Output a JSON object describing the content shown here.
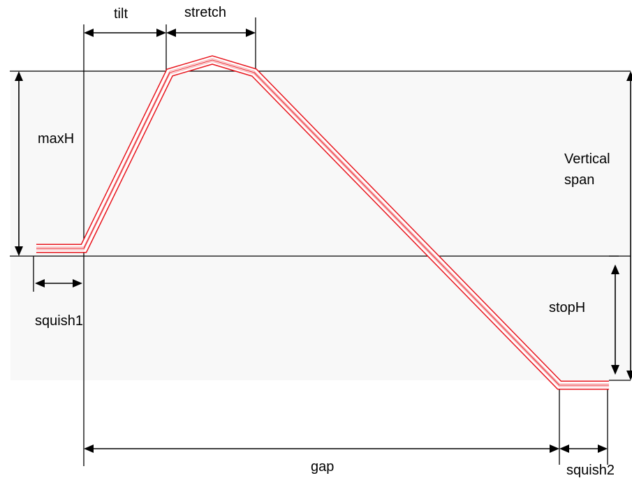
{
  "labels": {
    "tilt": "tilt",
    "stretch": "stretch",
    "maxH": "maxH",
    "vertical_span_line1": "Vertical",
    "vertical_span_line2": "span",
    "squish1": "squish1",
    "stopH": "stopH",
    "gap": "gap",
    "squish2": "squish2"
  },
  "colors": {
    "path_stroke": "#e8141c",
    "path_inner": "#f5a0a4",
    "lines": "#000000",
    "text": "#000000"
  }
}
